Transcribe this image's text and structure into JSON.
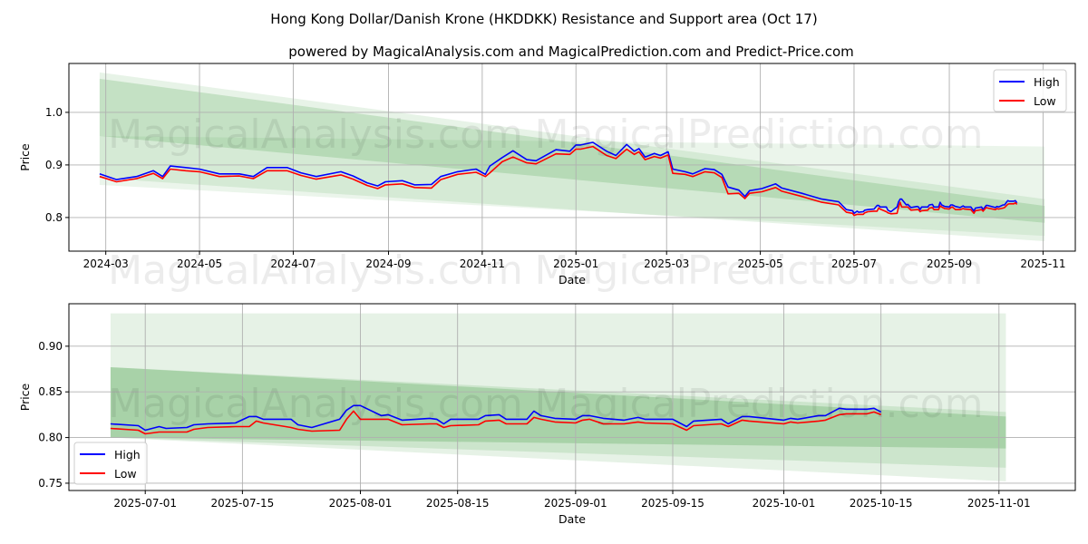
{
  "title": "Hong Kong Dollar/Danish Krone (HKDDKK) Resistance and Support area (Oct 17)",
  "subtitle": "powered by MagicalAnalysis.com and MagicalPrediction.com and Predict-Price.com",
  "watermarks": [
    "MagicalAnalysis.com",
    "MagicalPrediction.com"
  ],
  "colors": {
    "high": "#0000ff",
    "low": "#ff0000",
    "band": "#3c9c3c"
  },
  "chart_data": [
    {
      "type": "line",
      "xlabel": "Date",
      "ylabel": "Price",
      "xlim": [
        "2024-02-06",
        "2025-11-22"
      ],
      "ylim": [
        0.736,
        1.093
      ],
      "yticks": [
        0.8,
        0.9,
        1.0
      ],
      "ytick_labels": [
        "0.8",
        "0.9",
        "1.0"
      ],
      "xticks": [
        "2024-03-01",
        "2024-05-01",
        "2024-07-01",
        "2024-09-01",
        "2024-11-01",
        "2025-01-01",
        "2025-03-01",
        "2025-05-01",
        "2025-07-01",
        "2025-09-01",
        "2025-11-01"
      ],
      "xtick_labels": [
        "2024-03",
        "2024-05",
        "2024-07",
        "2024-09",
        "2024-11",
        "2025-01",
        "2025-03",
        "2025-05",
        "2025-07",
        "2025-09",
        "2025-11"
      ],
      "grid": true,
      "legend": {
        "position": "top-right",
        "entries": [
          "High",
          "Low"
        ]
      },
      "series_from": "2024-01-01",
      "bands": [
        {
          "x": [
            "2024-02-26",
            "2025-11-02"
          ],
          "top": [
            1.076,
            0.835
          ],
          "bottom": [
            0.875,
            0.755
          ],
          "opacity": 0.12
        },
        {
          "x": [
            "2024-02-26",
            "2025-11-02"
          ],
          "top": [
            0.955,
            0.935
          ],
          "bottom": [
            0.862,
            0.765
          ],
          "opacity": 0.1
        },
        {
          "x": [
            "2024-02-26",
            "2025-11-02"
          ],
          "top": [
            1.064,
            0.822
          ],
          "bottom": [
            0.955,
            0.79
          ],
          "opacity": 0.2
        }
      ]
    },
    {
      "type": "line",
      "xlabel": "Date",
      "ylabel": "Price",
      "xlim": [
        "2025-06-20",
        "2025-11-12"
      ],
      "ylim": [
        0.742,
        0.9465
      ],
      "yticks": [
        0.75,
        0.8,
        0.85,
        0.9
      ],
      "ytick_labels": [
        "0.75",
        "0.80",
        "0.85",
        "0.90"
      ],
      "xticks": [
        "2025-07-01",
        "2025-07-15",
        "2025-08-01",
        "2025-08-15",
        "2025-09-01",
        "2025-09-15",
        "2025-10-01",
        "2025-10-15",
        "2025-11-01"
      ],
      "xtick_labels": [
        "2025-07-01",
        "2025-07-15",
        "2025-08-01",
        "2025-08-15",
        "2025-09-01",
        "2025-09-15",
        "2025-10-01",
        "2025-10-15",
        "2025-11-01"
      ],
      "grid": true,
      "legend": {
        "position": "bottom-left",
        "entries": [
          "High",
          "Low"
        ]
      },
      "series_from": "2025-06-26",
      "bands": [
        {
          "x": [
            "2025-06-26",
            "2025-11-02"
          ],
          "top": [
            0.936,
            0.936
          ],
          "bottom": [
            0.8,
            0.752
          ],
          "opacity": 0.13
        },
        {
          "x": [
            "2025-06-26",
            "2025-11-02"
          ],
          "top": [
            0.877,
            0.828
          ],
          "bottom": [
            0.8,
            0.767
          ],
          "opacity": 0.15
        },
        {
          "x": [
            "2025-06-26",
            "2025-11-02"
          ],
          "top": [
            0.877,
            0.823
          ],
          "bottom": [
            0.8,
            0.788
          ],
          "opacity": 0.25
        }
      ]
    }
  ],
  "series": {
    "names": [
      "High",
      "Low"
    ],
    "points": [
      [
        "2024-02-26",
        0.883,
        0.878
      ],
      [
        "2024-03-08",
        0.872,
        0.868
      ],
      [
        "2024-03-21",
        0.878,
        0.874
      ],
      [
        "2024-04-01",
        0.889,
        0.884
      ],
      [
        "2024-04-07",
        0.878,
        0.874
      ],
      [
        "2024-04-12",
        0.898,
        0.892
      ],
      [
        "2024-04-22",
        0.895,
        0.889
      ],
      [
        "2024-05-01",
        0.892,
        0.887
      ],
      [
        "2024-05-14",
        0.883,
        0.878
      ],
      [
        "2024-05-27",
        0.883,
        0.879
      ],
      [
        "2024-06-05",
        0.878,
        0.874
      ],
      [
        "2024-06-14",
        0.895,
        0.889
      ],
      [
        "2024-06-27",
        0.895,
        0.889
      ],
      [
        "2024-07-06",
        0.885,
        0.88
      ],
      [
        "2024-07-16",
        0.878,
        0.873
      ],
      [
        "2024-08-01",
        0.887,
        0.881
      ],
      [
        "2024-08-09",
        0.879,
        0.873
      ],
      [
        "2024-08-18",
        0.866,
        0.861
      ],
      [
        "2024-08-25",
        0.86,
        0.855
      ],
      [
        "2024-08-30",
        0.868,
        0.862
      ],
      [
        "2024-09-10",
        0.87,
        0.864
      ],
      [
        "2024-09-18",
        0.862,
        0.857
      ],
      [
        "2024-09-29",
        0.863,
        0.856
      ],
      [
        "2024-10-05",
        0.878,
        0.872
      ],
      [
        "2024-10-16",
        0.887,
        0.882
      ],
      [
        "2024-10-28",
        0.892,
        0.886
      ],
      [
        "2024-11-03",
        0.882,
        0.878
      ],
      [
        "2024-11-06",
        0.898,
        0.885
      ],
      [
        "2024-11-14",
        0.914,
        0.906
      ],
      [
        "2024-11-21",
        0.927,
        0.915
      ],
      [
        "2024-11-30",
        0.91,
        0.904
      ],
      [
        "2024-12-06",
        0.908,
        0.902
      ],
      [
        "2024-12-19",
        0.929,
        0.921
      ],
      [
        "2024-12-28",
        0.926,
        0.92
      ],
      [
        "2025-01-01",
        0.938,
        0.93
      ],
      [
        "2025-01-04",
        0.938,
        0.93
      ],
      [
        "2025-01-12",
        0.943,
        0.935
      ],
      [
        "2025-01-21",
        0.926,
        0.918
      ],
      [
        "2025-01-27",
        0.918,
        0.912
      ],
      [
        "2025-02-03",
        0.939,
        0.93
      ],
      [
        "2025-02-08",
        0.926,
        0.92
      ],
      [
        "2025-02-11",
        0.931,
        0.925
      ],
      [
        "2025-02-15",
        0.915,
        0.91
      ],
      [
        "2025-02-21",
        0.922,
        0.916
      ],
      [
        "2025-02-25",
        0.918,
        0.913
      ],
      [
        "2025-03-02",
        0.925,
        0.919
      ],
      [
        "2025-03-05",
        0.892,
        0.884
      ],
      [
        "2025-03-13",
        0.887,
        0.882
      ],
      [
        "2025-03-18",
        0.883,
        0.878
      ],
      [
        "2025-03-26",
        0.893,
        0.887
      ],
      [
        "2025-04-01",
        0.891,
        0.885
      ],
      [
        "2025-04-06",
        0.882,
        0.876
      ],
      [
        "2025-04-10",
        0.858,
        0.845
      ],
      [
        "2025-04-17",
        0.852,
        0.846
      ],
      [
        "2025-04-21",
        0.84,
        0.836
      ],
      [
        "2025-04-24",
        0.851,
        0.846
      ],
      [
        "2025-05-02",
        0.855,
        0.849
      ],
      [
        "2025-05-11",
        0.864,
        0.857
      ],
      [
        "2025-05-15",
        0.856,
        0.85
      ],
      [
        "2025-05-28",
        0.846,
        0.84
      ],
      [
        "2025-06-10",
        0.835,
        0.829
      ],
      [
        "2025-06-21",
        0.83,
        0.824
      ],
      [
        "2025-06-26",
        0.815,
        0.81
      ],
      [
        "2025-06-30",
        0.813,
        0.808
      ],
      [
        "2025-07-01",
        0.808,
        0.804
      ],
      [
        "2025-07-03",
        0.812,
        0.806
      ],
      [
        "2025-07-04",
        0.81,
        0.806
      ],
      [
        "2025-07-07",
        0.811,
        0.806
      ],
      [
        "2025-07-08",
        0.814,
        0.809
      ],
      [
        "2025-07-10",
        0.815,
        0.811
      ],
      [
        "2025-07-14",
        0.816,
        0.812
      ],
      [
        "2025-07-16",
        0.823,
        0.812
      ],
      [
        "2025-07-17",
        0.823,
        0.818
      ],
      [
        "2025-07-18",
        0.82,
        0.816
      ],
      [
        "2025-07-22",
        0.82,
        0.811
      ],
      [
        "2025-07-23",
        0.814,
        0.809
      ],
      [
        "2025-07-25",
        0.811,
        0.807
      ],
      [
        "2025-07-29",
        0.82,
        0.808
      ],
      [
        "2025-07-30",
        0.83,
        0.82
      ],
      [
        "2025-07-31",
        0.835,
        0.829
      ],
      [
        "2025-08-01",
        0.835,
        0.82
      ],
      [
        "2025-08-04",
        0.824,
        0.82
      ],
      [
        "2025-08-05",
        0.825,
        0.82
      ],
      [
        "2025-08-07",
        0.819,
        0.814
      ],
      [
        "2025-08-11",
        0.821,
        0.815
      ],
      [
        "2025-08-12",
        0.82,
        0.815
      ],
      [
        "2025-08-13",
        0.815,
        0.811
      ],
      [
        "2025-08-14",
        0.82,
        0.813
      ],
      [
        "2025-08-18",
        0.82,
        0.814
      ],
      [
        "2025-08-19",
        0.824,
        0.818
      ],
      [
        "2025-08-21",
        0.825,
        0.819
      ],
      [
        "2025-08-22",
        0.82,
        0.815
      ],
      [
        "2025-08-25",
        0.82,
        0.815
      ],
      [
        "2025-08-26",
        0.829,
        0.822
      ],
      [
        "2025-08-27",
        0.824,
        0.82
      ],
      [
        "2025-08-29",
        0.821,
        0.817
      ],
      [
        "2025-09-01",
        0.82,
        0.816
      ],
      [
        "2025-09-02",
        0.824,
        0.819
      ],
      [
        "2025-09-03",
        0.824,
        0.82
      ],
      [
        "2025-09-05",
        0.821,
        0.815
      ],
      [
        "2025-09-08",
        0.819,
        0.815
      ],
      [
        "2025-09-10",
        0.822,
        0.817
      ],
      [
        "2025-09-11",
        0.82,
        0.816
      ],
      [
        "2025-09-15",
        0.82,
        0.815
      ],
      [
        "2025-09-17",
        0.812,
        0.808
      ],
      [
        "2025-09-18",
        0.818,
        0.813
      ],
      [
        "2025-09-22",
        0.82,
        0.815
      ],
      [
        "2025-09-23",
        0.815,
        0.812
      ],
      [
        "2025-09-25",
        0.823,
        0.819
      ],
      [
        "2025-09-26",
        0.823,
        0.818
      ],
      [
        "2025-10-01",
        0.819,
        0.815
      ],
      [
        "2025-10-02",
        0.821,
        0.817
      ],
      [
        "2025-10-03",
        0.82,
        0.816
      ],
      [
        "2025-10-06",
        0.824,
        0.818
      ],
      [
        "2025-10-07",
        0.824,
        0.819
      ],
      [
        "2025-10-09",
        0.832,
        0.825
      ],
      [
        "2025-10-10",
        0.831,
        0.826
      ],
      [
        "2025-10-13",
        0.831,
        0.826
      ],
      [
        "2025-10-14",
        0.832,
        0.828
      ],
      [
        "2025-10-15",
        0.828,
        0.825
      ]
    ]
  }
}
